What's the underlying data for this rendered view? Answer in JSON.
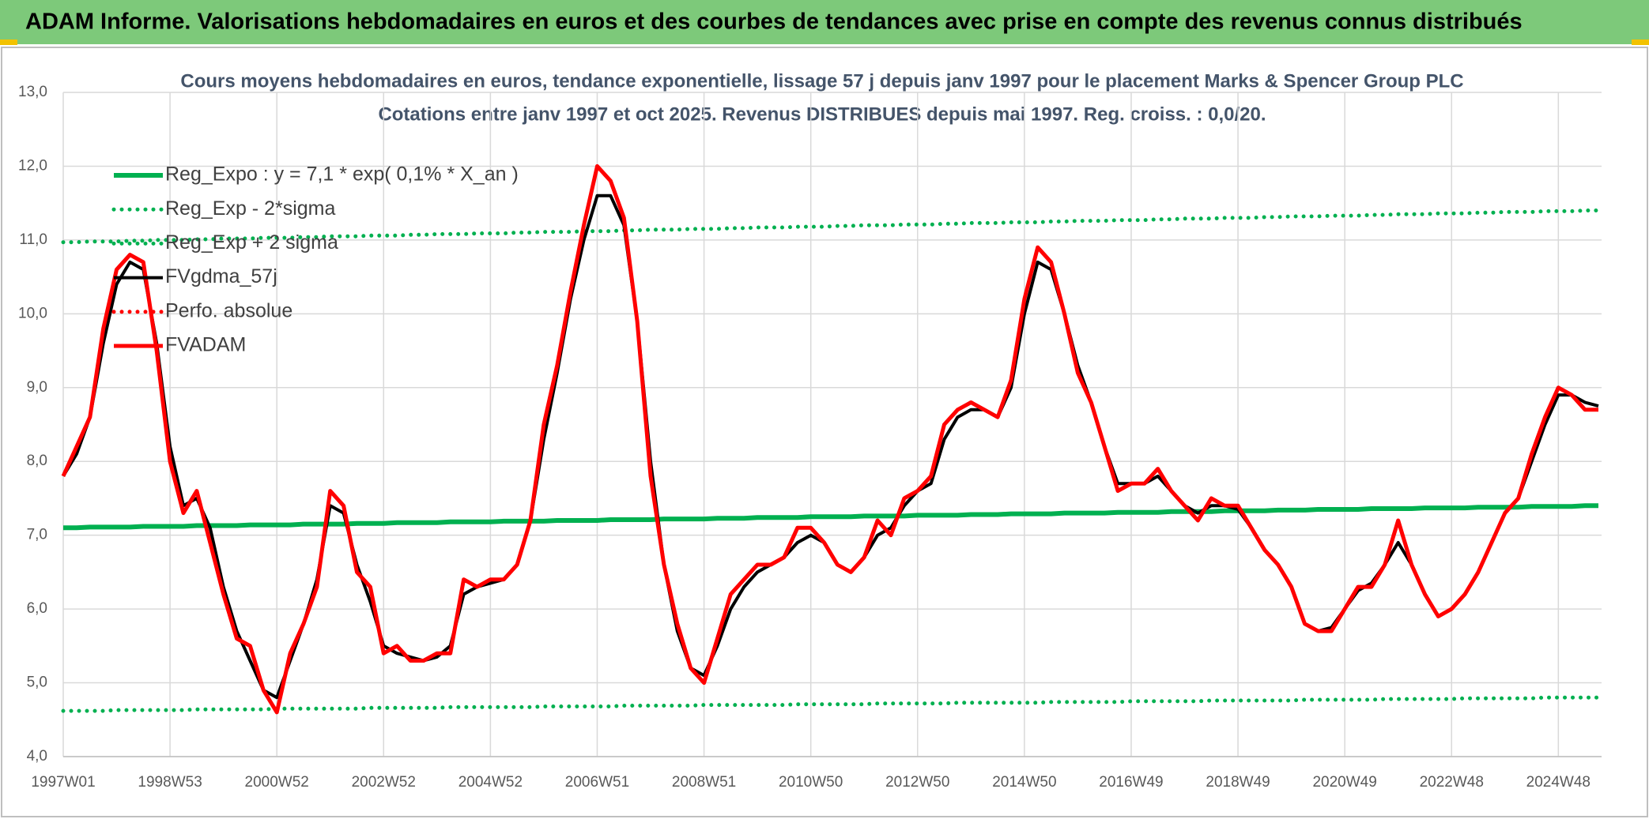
{
  "header": {
    "title": "ADAM Informe. Valorisations hebdomadaires en euros et des courbes de tendances avec prise en compte des revenus connus distribués"
  },
  "chart_data": {
    "type": "line",
    "title": "Cours moyens hebdomadaires en euros, tendance exponentielle, lissage 57 j depuis janv 1997 pour le placement Marks & Spencer Group PLC",
    "subtitle": "Cotations entre janv 1997 et oct 2025. Revenus DISTRIBUES depuis mai 1997. Reg. croiss. : 0,0/20.",
    "categories": [
      "1997W01",
      null,
      null,
      null,
      null,
      null,
      null,
      null,
      "1998W53",
      null,
      null,
      null,
      null,
      null,
      null,
      null,
      "2000W52",
      null,
      null,
      null,
      null,
      null,
      null,
      null,
      "2002W52",
      null,
      null,
      null,
      null,
      null,
      null,
      null,
      "2004W52",
      null,
      null,
      null,
      null,
      null,
      null,
      null,
      "2006W51",
      null,
      null,
      null,
      null,
      null,
      null,
      null,
      "2008W51",
      null,
      null,
      null,
      null,
      null,
      null,
      null,
      "2010W50",
      null,
      null,
      null,
      null,
      null,
      null,
      null,
      "2012W50",
      null,
      null,
      null,
      null,
      null,
      null,
      null,
      "2014W50",
      null,
      null,
      null,
      null,
      null,
      null,
      null,
      "2016W49",
      null,
      null,
      null,
      null,
      null,
      null,
      null,
      "2018W49",
      null,
      null,
      null,
      null,
      null,
      null,
      null,
      "2020W49",
      null,
      null,
      null,
      null,
      null,
      null,
      null,
      "2022W48",
      null,
      null,
      null,
      null,
      null,
      null,
      null,
      "2024W48",
      null,
      null,
      null
    ],
    "ylim": [
      4,
      13
    ],
    "yticks": [
      {
        "value": 4,
        "label": "4,0"
      },
      {
        "value": 5,
        "label": "5,0"
      },
      {
        "value": 6,
        "label": "6,0"
      },
      {
        "value": 7,
        "label": "7,0"
      },
      {
        "value": 8,
        "label": "8,0"
      },
      {
        "value": 9,
        "label": "9,0"
      },
      {
        "value": 10,
        "label": "10,0"
      },
      {
        "value": 11,
        "label": "11,0"
      },
      {
        "value": 12,
        "label": "12,0"
      },
      {
        "value": 13,
        "label": "13,0"
      }
    ],
    "grid": true,
    "legend": "top-left",
    "series": [
      {
        "name": "Reg_Expo : y = 7,1 * exp( 0,1% *  X_an )",
        "color": "#00b050",
        "style": "solid",
        "width": 6,
        "values": [
          7.1,
          7.1,
          7.11,
          7.11,
          7.11,
          7.11,
          7.12,
          7.12,
          7.12,
          7.12,
          7.13,
          7.13,
          7.13,
          7.13,
          7.14,
          7.14,
          7.14,
          7.14,
          7.15,
          7.15,
          7.15,
          7.15,
          7.16,
          7.16,
          7.16,
          7.17,
          7.17,
          7.17,
          7.17,
          7.18,
          7.18,
          7.18,
          7.18,
          7.19,
          7.19,
          7.19,
          7.19,
          7.2,
          7.2,
          7.2,
          7.2,
          7.21,
          7.21,
          7.21,
          7.21,
          7.22,
          7.22,
          7.22,
          7.22,
          7.23,
          7.23,
          7.23,
          7.24,
          7.24,
          7.24,
          7.24,
          7.25,
          7.25,
          7.25,
          7.25,
          7.26,
          7.26,
          7.26,
          7.26,
          7.27,
          7.27,
          7.27,
          7.27,
          7.28,
          7.28,
          7.28,
          7.29,
          7.29,
          7.29,
          7.29,
          7.3,
          7.3,
          7.3,
          7.3,
          7.31,
          7.31,
          7.31,
          7.31,
          7.32,
          7.32,
          7.32,
          7.32,
          7.33,
          7.33,
          7.33,
          7.33,
          7.34,
          7.34,
          7.34,
          7.35,
          7.35,
          7.35,
          7.35,
          7.36,
          7.36,
          7.36,
          7.36,
          7.37,
          7.37,
          7.37,
          7.37,
          7.38,
          7.38,
          7.38,
          7.38,
          7.39,
          7.39,
          7.39,
          7.39,
          7.4,
          7.4
        ]
      },
      {
        "name": "Reg_Exp - 2*sigma",
        "color": "#00b050",
        "style": "dotted",
        "width": 5,
        "values": [
          4.62,
          4.62,
          4.62,
          4.62,
          4.63,
          4.63,
          4.63,
          4.63,
          4.63,
          4.63,
          4.64,
          4.64,
          4.64,
          4.64,
          4.64,
          4.64,
          4.65,
          4.65,
          4.65,
          4.65,
          4.65,
          4.65,
          4.65,
          4.66,
          4.66,
          4.66,
          4.66,
          4.66,
          4.66,
          4.67,
          4.67,
          4.67,
          4.67,
          4.67,
          4.67,
          4.67,
          4.68,
          4.68,
          4.68,
          4.68,
          4.68,
          4.68,
          4.69,
          4.69,
          4.69,
          4.69,
          4.69,
          4.69,
          4.7,
          4.7,
          4.7,
          4.7,
          4.7,
          4.7,
          4.7,
          4.71,
          4.71,
          4.71,
          4.71,
          4.71,
          4.71,
          4.72,
          4.72,
          4.72,
          4.72,
          4.72,
          4.72,
          4.73,
          4.73,
          4.73,
          4.73,
          4.73,
          4.73,
          4.73,
          4.74,
          4.74,
          4.74,
          4.74,
          4.74,
          4.74,
          4.75,
          4.75,
          4.75,
          4.75,
          4.75,
          4.75,
          4.76,
          4.76,
          4.76,
          4.76,
          4.76,
          4.76,
          4.76,
          4.77,
          4.77,
          4.77,
          4.77,
          4.77,
          4.77,
          4.78,
          4.78,
          4.78,
          4.78,
          4.78,
          4.78,
          4.79,
          4.79,
          4.79,
          4.79,
          4.79,
          4.79,
          4.8,
          4.8,
          4.8,
          4.8,
          4.8
        ]
      },
      {
        "name": "Reg_Exp + 2 sigma",
        "color": "#00b050",
        "style": "dotted",
        "width": 5,
        "values": [
          10.97,
          10.97,
          10.98,
          10.98,
          10.98,
          10.99,
          10.99,
          11.0,
          11.0,
          11.0,
          11.01,
          11.01,
          11.02,
          11.02,
          11.02,
          11.03,
          11.03,
          11.03,
          11.04,
          11.04,
          11.05,
          11.05,
          11.05,
          11.06,
          11.06,
          11.06,
          11.07,
          11.07,
          11.08,
          11.08,
          11.08,
          11.09,
          11.09,
          11.09,
          11.1,
          11.1,
          11.11,
          11.11,
          11.11,
          11.12,
          11.12,
          11.12,
          11.13,
          11.13,
          11.14,
          11.14,
          11.14,
          11.15,
          11.15,
          11.15,
          11.16,
          11.16,
          11.17,
          11.17,
          11.17,
          11.18,
          11.18,
          11.18,
          11.19,
          11.19,
          11.2,
          11.2,
          11.2,
          11.21,
          11.21,
          11.21,
          11.22,
          11.22,
          11.23,
          11.23,
          11.23,
          11.24,
          11.24,
          11.24,
          11.25,
          11.25,
          11.26,
          11.26,
          11.26,
          11.27,
          11.27,
          11.27,
          11.28,
          11.28,
          11.29,
          11.29,
          11.29,
          11.3,
          11.3,
          11.3,
          11.31,
          11.31,
          11.32,
          11.32,
          11.32,
          11.33,
          11.33,
          11.33,
          11.34,
          11.34,
          11.35,
          11.35,
          11.35,
          11.36,
          11.36,
          11.36,
          11.37,
          11.37,
          11.38,
          11.38,
          11.38,
          11.39,
          11.39,
          11.39,
          11.4,
          11.4
        ]
      },
      {
        "name": "FVgdma_57j",
        "color": "#000000",
        "style": "solid",
        "width": 4,
        "values": [
          7.8,
          8.1,
          8.6,
          9.6,
          10.4,
          10.7,
          10.6,
          9.6,
          8.2,
          7.4,
          7.5,
          7.1,
          6.3,
          5.7,
          5.3,
          4.9,
          4.8,
          5.3,
          5.8,
          6.4,
          7.4,
          7.3,
          6.6,
          6.1,
          5.5,
          5.4,
          5.35,
          5.3,
          5.35,
          5.5,
          6.2,
          6.3,
          6.35,
          6.4,
          6.6,
          7.2,
          8.3,
          9.2,
          10.2,
          11.0,
          11.6,
          11.6,
          11.2,
          9.9,
          8.0,
          6.6,
          5.7,
          5.2,
          5.1,
          5.5,
          6.0,
          6.3,
          6.5,
          6.6,
          6.7,
          6.9,
          7.0,
          6.9,
          6.6,
          6.5,
          6.7,
          7.0,
          7.1,
          7.4,
          7.6,
          7.7,
          8.3,
          8.6,
          8.7,
          8.7,
          8.6,
          9.0,
          10.0,
          10.7,
          10.6,
          10.0,
          9.3,
          8.8,
          8.2,
          7.7,
          7.7,
          7.7,
          7.8,
          7.6,
          7.4,
          7.3,
          7.4,
          7.4,
          7.35,
          7.1,
          6.8,
          6.6,
          6.3,
          5.8,
          5.7,
          5.75,
          6.0,
          6.25,
          6.35,
          6.6,
          6.9,
          6.6,
          6.2,
          5.9,
          6.0,
          6.2,
          6.5,
          6.9,
          7.3,
          7.5,
          8.0,
          8.5,
          8.9,
          8.9,
          8.8,
          8.75
        ]
      },
      {
        "name": "Perfo. absolue",
        "color": "#ff0000",
        "style": "dotted",
        "width": 5
      },
      {
        "name": "FVADAM",
        "color": "#ff0000",
        "style": "solid",
        "width": 5,
        "values": [
          7.8,
          8.2,
          8.6,
          9.8,
          10.6,
          10.8,
          10.7,
          9.5,
          8.0,
          7.3,
          7.6,
          6.9,
          6.2,
          5.6,
          5.5,
          4.9,
          4.6,
          5.4,
          5.8,
          6.3,
          7.6,
          7.4,
          6.5,
          6.3,
          5.4,
          5.5,
          5.3,
          5.3,
          5.4,
          5.4,
          6.4,
          6.3,
          6.4,
          6.4,
          6.6,
          7.2,
          8.5,
          9.3,
          10.3,
          11.2,
          12.0,
          11.8,
          11.3,
          9.9,
          7.8,
          6.6,
          5.8,
          5.2,
          5.0,
          5.6,
          6.2,
          6.4,
          6.6,
          6.6,
          6.7,
          7.1,
          7.1,
          6.9,
          6.6,
          6.5,
          6.7,
          7.2,
          7.0,
          7.5,
          7.6,
          7.8,
          8.5,
          8.7,
          8.8,
          8.7,
          8.6,
          9.1,
          10.2,
          10.9,
          10.7,
          10.0,
          9.2,
          8.8,
          8.2,
          7.6,
          7.7,
          7.7,
          7.9,
          7.6,
          7.4,
          7.2,
          7.5,
          7.4,
          7.4,
          7.1,
          6.8,
          6.6,
          6.3,
          5.8,
          5.7,
          5.7,
          6.0,
          6.3,
          6.3,
          6.6,
          7.2,
          6.6,
          6.2,
          5.9,
          6.0,
          6.2,
          6.5,
          6.9,
          7.3,
          7.5,
          8.1,
          8.6,
          9.0,
          8.9,
          8.7,
          8.7
        ]
      }
    ]
  }
}
